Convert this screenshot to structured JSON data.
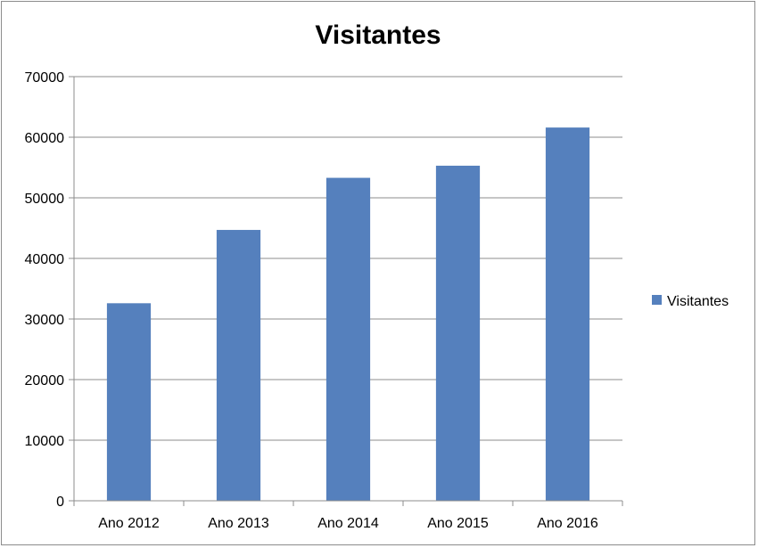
{
  "chart_data": {
    "type": "bar",
    "title": "Visitantes",
    "xlabel": "",
    "ylabel": "",
    "categories": [
      "Ano 2012",
      "Ano 2013",
      "Ano 2014",
      "Ano 2015",
      "Ano 2016"
    ],
    "series": [
      {
        "name": "Visitantes",
        "values": [
          32600,
          44700,
          53300,
          55300,
          61600
        ],
        "color": "#5580bd"
      }
    ],
    "ylim": [
      0,
      70000
    ],
    "yticks": [
      "0",
      "10000",
      "20000",
      "30000",
      "40000",
      "50000",
      "60000",
      "70000"
    ],
    "grid": true,
    "legend": "right"
  }
}
